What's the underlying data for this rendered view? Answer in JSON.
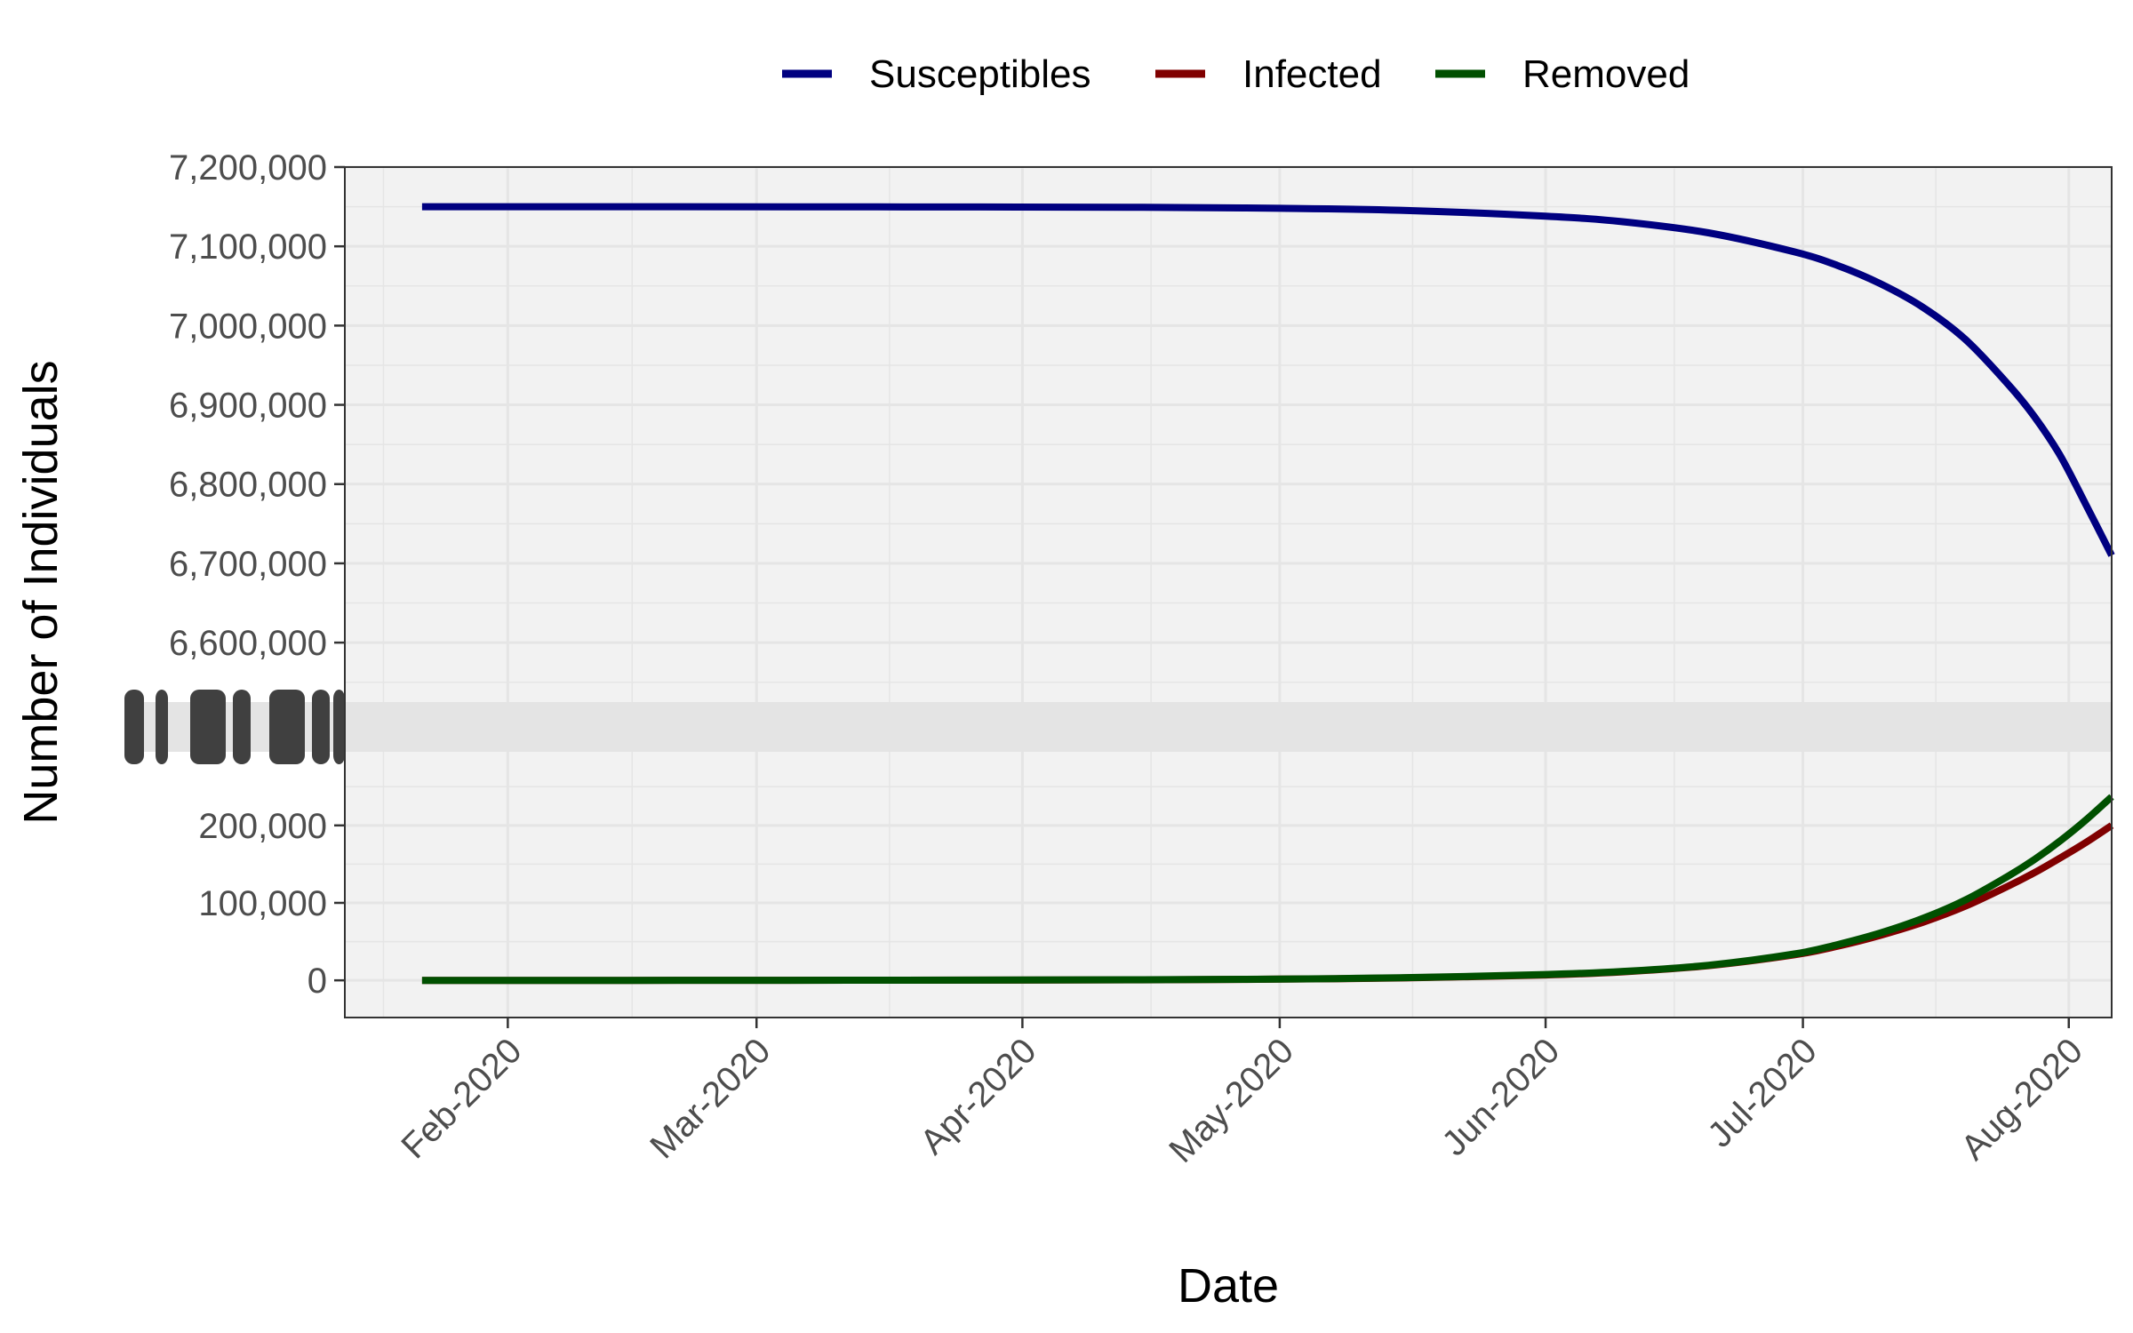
{
  "chart_data": {
    "type": "line",
    "title": "",
    "xlabel": "Date",
    "ylabel": "Number of Individuals",
    "x_type": "date",
    "x_range": [
      "2020-01-13",
      "2020-08-06"
    ],
    "x_ticks": [
      {
        "date": "2020-02-01",
        "label": "Feb-2020"
      },
      {
        "date": "2020-03-01",
        "label": "Mar-2020"
      },
      {
        "date": "2020-04-01",
        "label": "Apr-2020"
      },
      {
        "date": "2020-05-01",
        "label": "May-2020"
      },
      {
        "date": "2020-06-01",
        "label": "Jun-2020"
      },
      {
        "date": "2020-07-01",
        "label": "Jul-2020"
      },
      {
        "date": "2020-08-01",
        "label": "Aug-2020"
      }
    ],
    "y_axis_break": true,
    "panels": [
      {
        "name": "upper",
        "ylim": [
          6525000,
          7200000
        ],
        "y_ticks": [
          6600000,
          6700000,
          6800000,
          6900000,
          7000000,
          7100000,
          7200000
        ],
        "y_tick_labels": [
          "6,600,000",
          "6,700,000",
          "6,800,000",
          "6,900,000",
          "7,000,000",
          "7,100,000",
          "7,200,000"
        ]
      },
      {
        "name": "lower",
        "ylim": [
          -48000,
          295000
        ],
        "y_ticks": [
          0,
          100000,
          200000
        ],
        "y_tick_labels": [
          "0",
          "100,000",
          "200,000"
        ]
      }
    ],
    "series": [
      {
        "name": "Susceptibles",
        "color": "#000080",
        "panel": "upper",
        "points": [
          [
            "2020-01-22",
            7150000
          ],
          [
            "2020-02-15",
            7150000
          ],
          [
            "2020-03-15",
            7149800
          ],
          [
            "2020-04-15",
            7149200
          ],
          [
            "2020-05-01",
            7148000
          ],
          [
            "2020-05-15",
            7145500
          ],
          [
            "2020-06-01",
            7138000
          ],
          [
            "2020-06-10",
            7131000
          ],
          [
            "2020-06-20",
            7117000
          ],
          [
            "2020-06-30",
            7093000
          ],
          [
            "2020-07-05",
            7076000
          ],
          [
            "2020-07-10",
            7053000
          ],
          [
            "2020-07-15",
            7023000
          ],
          [
            "2020-07-20",
            6982000
          ],
          [
            "2020-07-25",
            6925000
          ],
          [
            "2020-07-28",
            6885000
          ],
          [
            "2020-07-31",
            6836000
          ],
          [
            "2020-08-03",
            6774000
          ],
          [
            "2020-08-06",
            6710000
          ]
        ]
      },
      {
        "name": "Infected",
        "color": "#800000",
        "panel": "lower",
        "points": [
          [
            "2020-01-22",
            0
          ],
          [
            "2020-02-15",
            0
          ],
          [
            "2020-03-15",
            150
          ],
          [
            "2020-04-15",
            600
          ],
          [
            "2020-05-01",
            1500
          ],
          [
            "2020-05-15",
            3000
          ],
          [
            "2020-06-01",
            7000
          ],
          [
            "2020-06-10",
            11000
          ],
          [
            "2020-06-20",
            19000
          ],
          [
            "2020-06-30",
            33000
          ],
          [
            "2020-07-05",
            44000
          ],
          [
            "2020-07-10",
            58000
          ],
          [
            "2020-07-15",
            75000
          ],
          [
            "2020-07-20",
            96000
          ],
          [
            "2020-07-25",
            122000
          ],
          [
            "2020-07-28",
            139000
          ],
          [
            "2020-07-31",
            158000
          ],
          [
            "2020-08-03",
            178000
          ],
          [
            "2020-08-06",
            200000
          ]
        ]
      },
      {
        "name": "Removed",
        "color": "#005000",
        "panel": "lower",
        "points": [
          [
            "2020-01-22",
            0
          ],
          [
            "2020-02-15",
            0
          ],
          [
            "2020-03-15",
            200
          ],
          [
            "2020-04-15",
            700
          ],
          [
            "2020-05-01",
            1700
          ],
          [
            "2020-05-15",
            3300
          ],
          [
            "2020-06-01",
            7500
          ],
          [
            "2020-06-10",
            11500
          ],
          [
            "2020-06-20",
            19500
          ],
          [
            "2020-06-30",
            34000
          ],
          [
            "2020-07-05",
            46000
          ],
          [
            "2020-07-10",
            61000
          ],
          [
            "2020-07-15",
            80000
          ],
          [
            "2020-07-20",
            104000
          ],
          [
            "2020-07-25",
            135000
          ],
          [
            "2020-07-28",
            156000
          ],
          [
            "2020-07-31",
            180000
          ],
          [
            "2020-08-03",
            207000
          ],
          [
            "2020-08-06",
            237000
          ]
        ]
      }
    ],
    "legend": {
      "position": "top",
      "entries": [
        "Susceptibles",
        "Infected",
        "Removed"
      ]
    },
    "grid": true,
    "panel_background": "#f2f2f2",
    "grid_color": "#e5e5e5"
  }
}
